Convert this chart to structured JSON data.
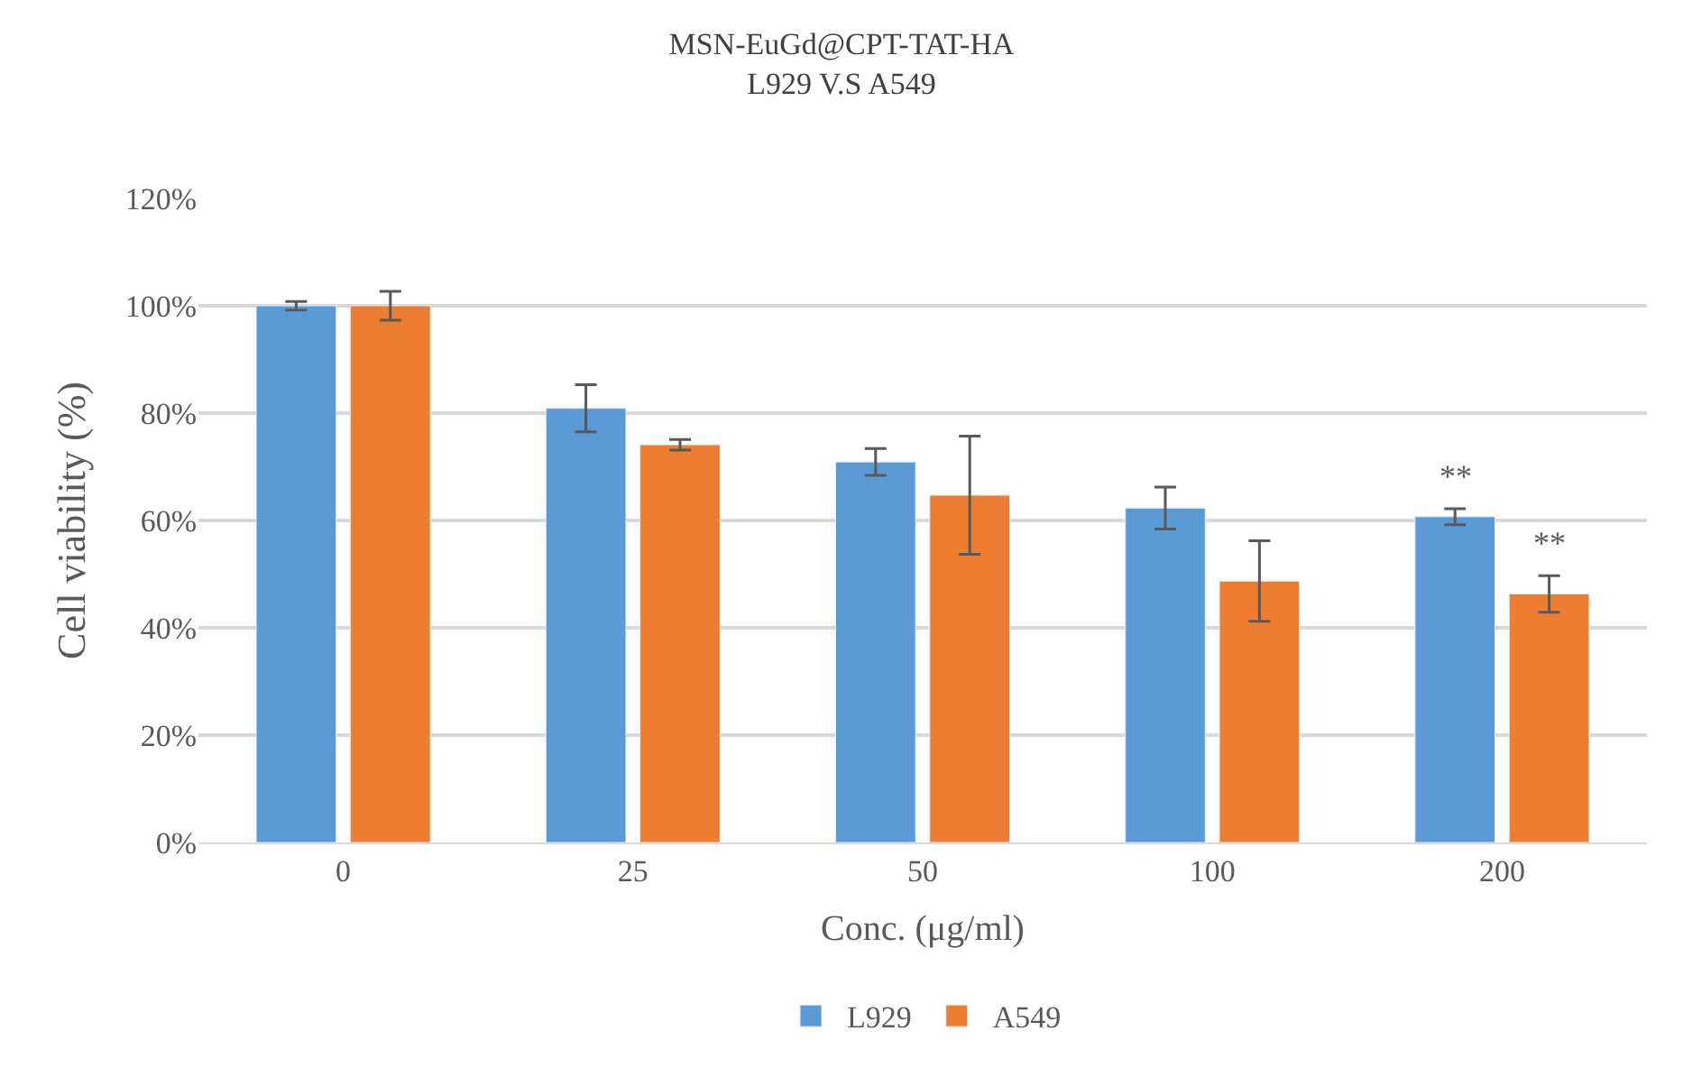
{
  "chart_data": {
    "type": "bar",
    "title": "MSN-EuGd@CPT-TAT-HA\nL929 V.S A549",
    "xlabel": "Conc. (μg/ml)",
    "ylabel": "Cell viability (%)",
    "categories": [
      "0",
      "25",
      "50",
      "100",
      "200"
    ],
    "series": [
      {
        "name": "L929",
        "color": "#5b9bd5",
        "values": [
          100,
          80.9,
          70.9,
          62.3,
          60.7
        ],
        "errors": [
          0.8,
          4.4,
          2.5,
          3.9,
          1.5
        ]
      },
      {
        "name": "A549",
        "color": "#ed7d31",
        "values": [
          100,
          74.1,
          64.7,
          48.7,
          46.3
        ],
        "errors": [
          2.7,
          1.0,
          11,
          7.5,
          3.4
        ]
      }
    ],
    "ylim": [
      0,
      120
    ],
    "yticks": [
      {
        "value": 0,
        "label": "0%"
      },
      {
        "value": 20,
        "label": "20%"
      },
      {
        "value": 40,
        "label": "40%"
      },
      {
        "value": 60,
        "label": "60%"
      },
      {
        "value": 80,
        "label": "80%"
      },
      {
        "value": 100,
        "label": "100%"
      },
      {
        "value": 120,
        "label": "120%"
      }
    ],
    "annotations": [
      {
        "text": "**",
        "x": "200",
        "y": 60.7
      },
      {
        "text": "**",
        "x": "200",
        "y": 46.3
      }
    ],
    "grid": "y",
    "legend": "bottom"
  }
}
